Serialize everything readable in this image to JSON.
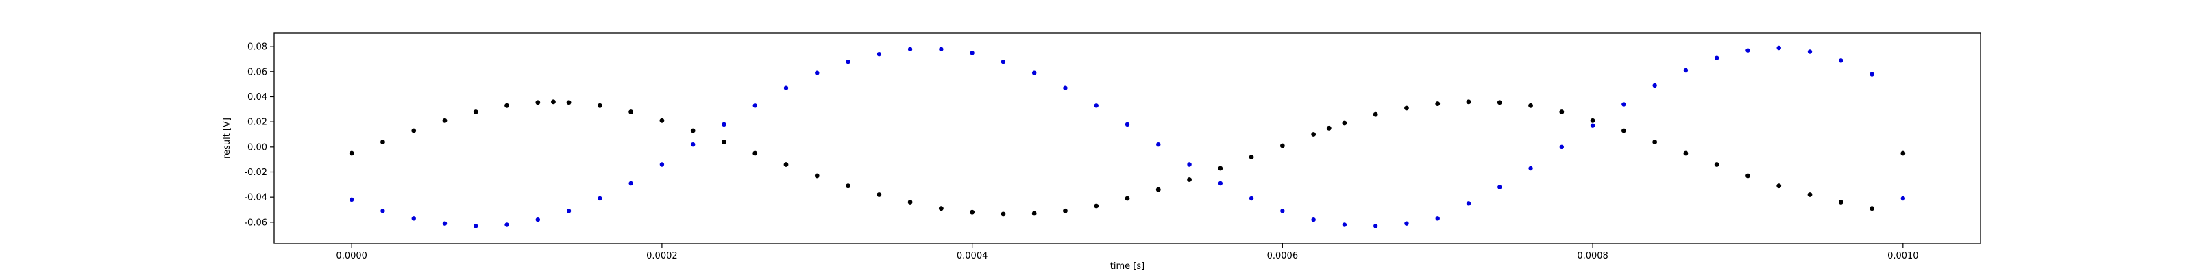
{
  "chart_data": {
    "type": "scatter",
    "title": "",
    "xlabel": "time [s]",
    "ylabel": "result [V]",
    "xlim": [
      -5e-05,
      0.00105
    ],
    "ylim": [
      -0.077,
      0.091
    ],
    "x_ticks": [
      0.0,
      0.0002,
      0.0004,
      0.0006,
      0.0008,
      0.001
    ],
    "x_tick_labels": [
      "0.0000",
      "0.0002",
      "0.0004",
      "0.0006",
      "0.0008",
      "0.0010"
    ],
    "y_ticks": [
      -0.06,
      -0.04,
      -0.02,
      0.0,
      0.02,
      0.04,
      0.06,
      0.08
    ],
    "y_tick_labels": [
      "-0.06",
      "-0.04",
      "-0.02",
      "0.00",
      "0.02",
      "0.04",
      "0.06",
      "0.08"
    ],
    "grid": false,
    "legend": "none",
    "series": [
      {
        "color": "#000000",
        "x": [
          0.0,
          2e-05,
          4e-05,
          6e-05,
          8e-05,
          0.0001,
          0.00012,
          0.00013,
          0.00014,
          0.00016,
          0.00018,
          0.0002,
          0.00022,
          0.00024,
          0.00026,
          0.00028,
          0.0003,
          0.00032,
          0.00034,
          0.00036,
          0.00038,
          0.0004,
          0.00042,
          0.00044,
          0.00046,
          0.00048,
          0.0005,
          0.00052,
          0.00054,
          0.00056,
          0.00058,
          0.0006,
          0.00062,
          0.00063,
          0.00064,
          0.00066,
          0.00068,
          0.0007,
          0.00072,
          0.00074,
          0.00076,
          0.00078,
          0.0008,
          0.00082,
          0.00084,
          0.00086,
          0.00088,
          0.0009,
          0.00092,
          0.00094,
          0.00096,
          0.00098,
          0.001
        ],
        "y": [
          -0.005,
          0.004,
          0.013,
          0.021,
          0.028,
          0.033,
          0.0355,
          0.036,
          0.0355,
          0.033,
          0.028,
          0.021,
          0.013,
          0.004,
          -0.005,
          -0.014,
          -0.023,
          -0.031,
          -0.038,
          -0.044,
          -0.049,
          -0.052,
          -0.0535,
          -0.053,
          -0.051,
          -0.047,
          -0.041,
          -0.034,
          -0.026,
          -0.017,
          -0.008,
          0.001,
          0.01,
          0.015,
          0.019,
          0.026,
          0.031,
          0.0345,
          0.036,
          0.0355,
          0.033,
          0.028,
          0.021,
          0.013,
          0.004,
          -0.005,
          -0.014,
          -0.023,
          -0.031,
          -0.038,
          -0.044,
          -0.049,
          -0.005
        ]
      },
      {
        "color": "#0000dd",
        "x": [
          0.0,
          2e-05,
          4e-05,
          6e-05,
          8e-05,
          0.0001,
          0.00012,
          0.00014,
          0.00016,
          0.00018,
          0.0002,
          0.00022,
          0.00024,
          0.00026,
          0.00028,
          0.0003,
          0.00032,
          0.00034,
          0.00036,
          0.00038,
          0.0004,
          0.00042,
          0.00044,
          0.00046,
          0.00048,
          0.0005,
          0.00052,
          0.00054,
          0.00056,
          0.00058,
          0.0006,
          0.00062,
          0.00064,
          0.00066,
          0.00068,
          0.0007,
          0.00072,
          0.00074,
          0.00076,
          0.00078,
          0.0008,
          0.00082,
          0.00084,
          0.00086,
          0.00088,
          0.0009,
          0.00092,
          0.00094,
          0.00096,
          0.00098,
          0.001
        ],
        "y": [
          -0.042,
          -0.051,
          -0.057,
          -0.061,
          -0.063,
          -0.062,
          -0.058,
          -0.051,
          -0.041,
          -0.029,
          -0.014,
          0.002,
          0.018,
          0.033,
          0.047,
          0.059,
          0.068,
          0.074,
          0.078,
          0.078,
          0.075,
          0.068,
          0.059,
          0.047,
          0.033,
          0.018,
          0.002,
          -0.014,
          -0.029,
          -0.041,
          -0.051,
          -0.058,
          -0.062,
          -0.063,
          -0.061,
          -0.057,
          -0.045,
          -0.032,
          -0.017,
          0.0,
          0.017,
          0.034,
          0.049,
          0.061,
          0.071,
          0.077,
          0.079,
          0.076,
          0.069,
          0.058,
          -0.041
        ]
      }
    ]
  }
}
